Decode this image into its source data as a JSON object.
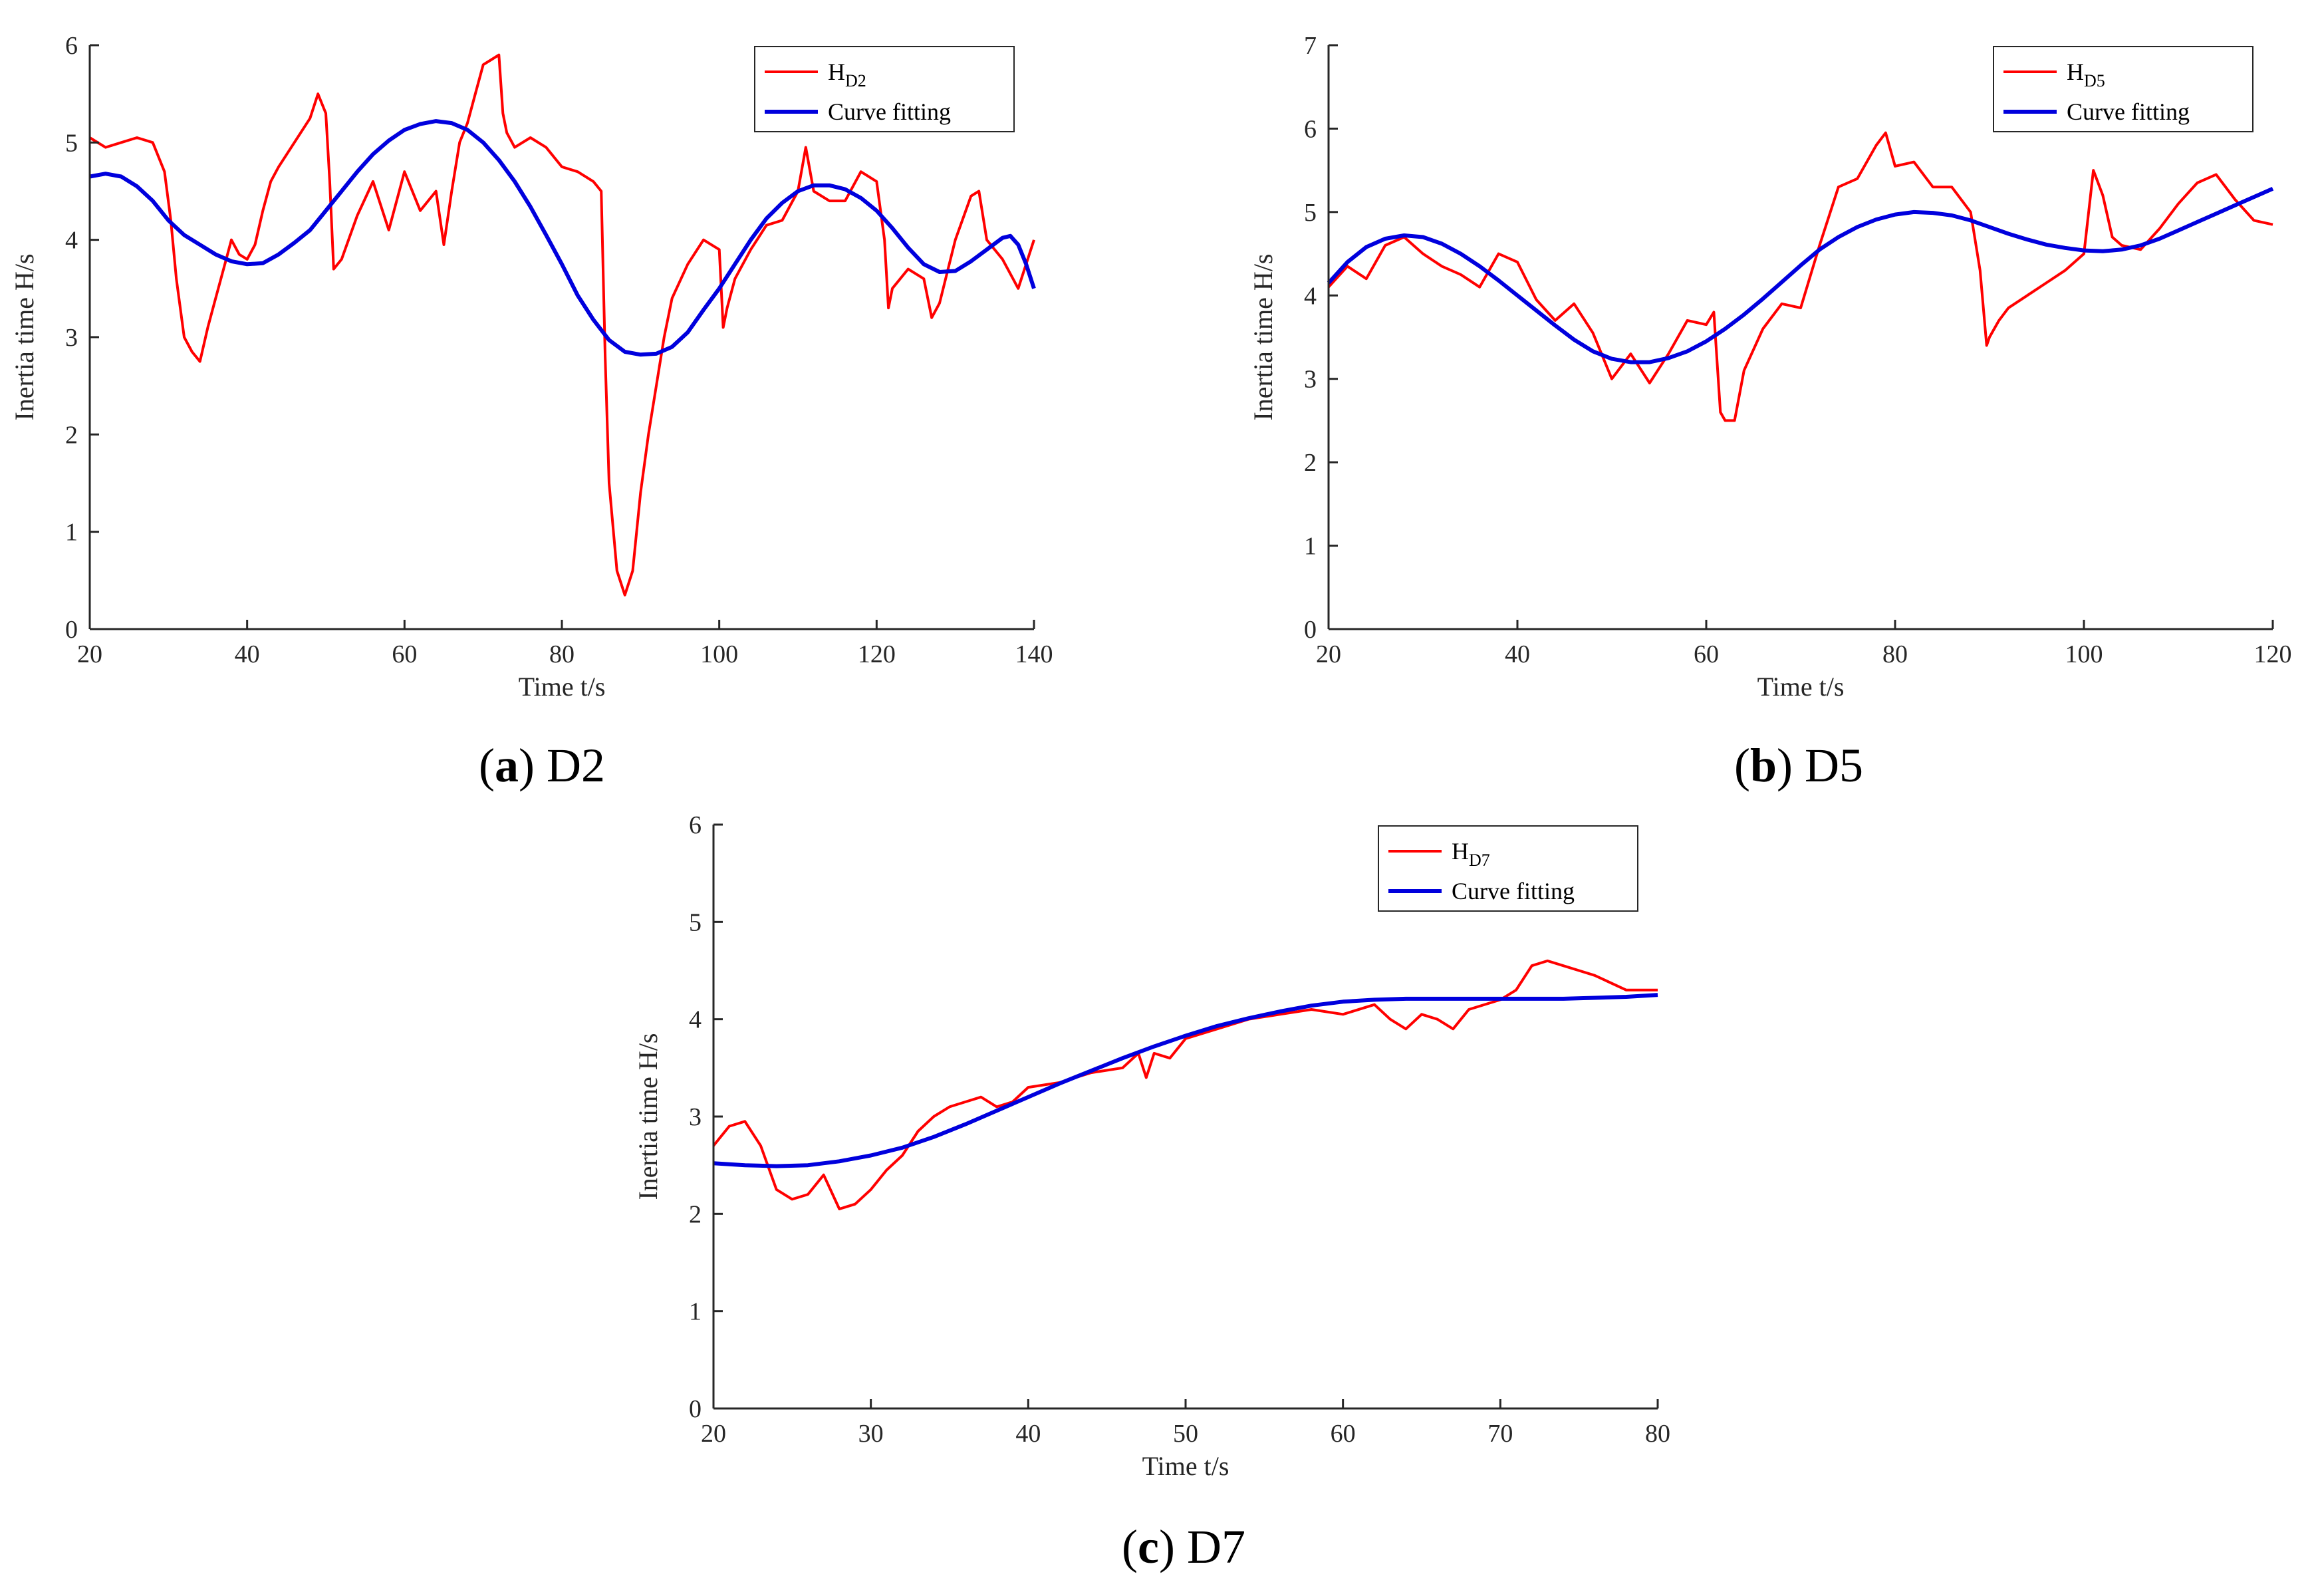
{
  "colors": {
    "measured": "#ff0000",
    "fit": "#0000dd",
    "axis": "#262626"
  },
  "chart_data": [
    {
      "id": "a",
      "type": "line",
      "xlabel": "Time t/s",
      "ylabel": "Inertia time H/s",
      "xlim": [
        20,
        140
      ],
      "ylim": [
        0,
        6
      ],
      "xticks": [
        "20",
        "40",
        "60",
        "80",
        "100",
        "120",
        "140"
      ],
      "yticks": [
        "0",
        "1",
        "2",
        "3",
        "4",
        "5",
        "6"
      ],
      "legend_position": "top-right",
      "caption": {
        "open": "(",
        "letter": "a",
        "close": ")",
        "text": " D2"
      },
      "series": [
        {
          "legend": {
            "main": "H",
            "sub": "D2"
          },
          "x": [
            20,
            22,
            24,
            26,
            28,
            29.5,
            30.3,
            31,
            32,
            33,
            34,
            35,
            36,
            37,
            38,
            39,
            40,
            41,
            42,
            43,
            44,
            46,
            48,
            49,
            50,
            50.5,
            51,
            52,
            54,
            56,
            58,
            60,
            62,
            64,
            65,
            66,
            67,
            68,
            69,
            70,
            71,
            72,
            72.5,
            73,
            74,
            76,
            78,
            80,
            82,
            84,
            85,
            85.5,
            86,
            87,
            88,
            89,
            90,
            91,
            92,
            93,
            94,
            96,
            98,
            100,
            100.5,
            101,
            102,
            104,
            106,
            108,
            110,
            111,
            112,
            114,
            116,
            118,
            120,
            121,
            121.5,
            122,
            124,
            126,
            127,
            128,
            130,
            132,
            133,
            134,
            136,
            138,
            140
          ],
          "y": [
            5.05,
            4.95,
            5.0,
            5.05,
            5.0,
            4.7,
            4.2,
            3.6,
            3.0,
            2.85,
            2.75,
            3.1,
            3.4,
            3.7,
            4.0,
            3.85,
            3.8,
            3.95,
            4.3,
            4.6,
            4.75,
            5.0,
            5.25,
            5.5,
            5.3,
            4.6,
            3.7,
            3.8,
            4.25,
            4.6,
            4.1,
            4.7,
            4.3,
            4.5,
            3.95,
            4.5,
            5.0,
            5.2,
            5.5,
            5.8,
            5.85,
            5.9,
            5.3,
            5.1,
            4.95,
            5.05,
            4.95,
            4.75,
            4.7,
            4.6,
            4.5,
            2.8,
            1.5,
            0.6,
            0.35,
            0.6,
            1.4,
            2.0,
            2.5,
            3.0,
            3.4,
            3.75,
            4.0,
            3.9,
            3.1,
            3.3,
            3.6,
            3.9,
            4.15,
            4.2,
            4.5,
            4.95,
            4.5,
            4.4,
            4.4,
            4.7,
            4.6,
            4.0,
            3.3,
            3.5,
            3.7,
            3.6,
            3.2,
            3.35,
            4.0,
            4.45,
            4.5,
            4.0,
            3.8,
            3.5,
            4.0
          ]
        },
        {
          "legend": {
            "main": "Curve fitting",
            "sub": ""
          },
          "x": [
            20,
            22,
            24,
            26,
            28,
            30,
            32,
            34,
            36,
            38,
            40,
            42,
            44,
            46,
            48,
            50,
            52,
            54,
            56,
            58,
            60,
            62,
            64,
            66,
            68,
            70,
            72,
            74,
            76,
            78,
            80,
            82,
            84,
            86,
            88,
            90,
            92,
            94,
            96,
            98,
            100,
            102,
            104,
            106,
            108,
            110,
            112,
            114,
            116,
            118,
            120,
            122,
            124,
            126,
            128,
            130,
            132,
            134,
            136,
            137,
            138,
            139,
            140
          ],
          "y": [
            4.65,
            4.68,
            4.65,
            4.55,
            4.4,
            4.2,
            4.05,
            3.95,
            3.85,
            3.78,
            3.75,
            3.76,
            3.85,
            3.97,
            4.1,
            4.3,
            4.5,
            4.7,
            4.88,
            5.02,
            5.13,
            5.19,
            5.22,
            5.2,
            5.13,
            5.0,
            4.82,
            4.6,
            4.34,
            4.05,
            3.75,
            3.43,
            3.18,
            2.97,
            2.85,
            2.82,
            2.83,
            2.9,
            3.05,
            3.28,
            3.5,
            3.75,
            4.0,
            4.22,
            4.38,
            4.5,
            4.56,
            4.56,
            4.52,
            4.43,
            4.3,
            4.12,
            3.92,
            3.75,
            3.67,
            3.68,
            3.78,
            3.9,
            4.02,
            4.04,
            3.95,
            3.75,
            3.5
          ]
        }
      ]
    },
    {
      "id": "b",
      "type": "line",
      "xlabel": "Time t/s",
      "ylabel": "Inertia time H/s",
      "xlim": [
        20,
        120
      ],
      "ylim": [
        0,
        7
      ],
      "xticks": [
        "20",
        "40",
        "60",
        "80",
        "100",
        "120"
      ],
      "yticks": [
        "0",
        "1",
        "2",
        "3",
        "4",
        "5",
        "6",
        "7"
      ],
      "legend_position": "top-right",
      "caption": {
        "open": "(",
        "letter": "b",
        "close": ")",
        "text": " D5"
      },
      "series": [
        {
          "legend": {
            "main": "H",
            "sub": "D5"
          },
          "x": [
            20,
            22,
            24,
            26,
            28,
            30,
            32,
            34,
            36,
            38,
            40,
            42,
            44,
            46,
            48,
            50,
            52,
            54,
            56,
            58,
            60,
            60.8,
            61.5,
            62,
            63,
            64,
            66,
            68,
            70,
            72,
            74,
            76,
            78,
            79,
            80,
            82,
            84,
            86,
            88,
            89,
            89.7,
            90,
            91,
            92,
            94,
            96,
            98,
            100,
            101,
            102,
            103,
            104,
            106,
            108,
            110,
            112,
            114,
            116,
            118,
            120
          ],
          "y": [
            4.1,
            4.35,
            4.2,
            4.6,
            4.7,
            4.5,
            4.35,
            4.25,
            4.1,
            4.5,
            4.4,
            3.95,
            3.7,
            3.9,
            3.55,
            3.0,
            3.3,
            2.95,
            3.3,
            3.7,
            3.65,
            3.8,
            2.6,
            2.5,
            2.5,
            3.1,
            3.6,
            3.9,
            3.85,
            4.6,
            5.3,
            5.4,
            5.8,
            5.95,
            5.55,
            5.6,
            5.3,
            5.3,
            5.0,
            4.3,
            3.4,
            3.5,
            3.7,
            3.85,
            4.0,
            4.15,
            4.3,
            4.5,
            5.5,
            5.2,
            4.7,
            4.6,
            4.55,
            4.8,
            5.1,
            5.35,
            5.45,
            5.15,
            4.9,
            4.85
          ]
        },
        {
          "legend": {
            "main": "Curve fitting",
            "sub": ""
          },
          "x": [
            20,
            22,
            24,
            26,
            28,
            30,
            32,
            34,
            36,
            38,
            40,
            42,
            44,
            46,
            48,
            50,
            52,
            54,
            56,
            58,
            60,
            62,
            64,
            66,
            68,
            70,
            72,
            74,
            76,
            78,
            80,
            82,
            84,
            86,
            88,
            90,
            92,
            94,
            96,
            98,
            100,
            102,
            104,
            106,
            108,
            110,
            112,
            114,
            116,
            118,
            120
          ],
          "y": [
            4.15,
            4.4,
            4.58,
            4.68,
            4.72,
            4.7,
            4.62,
            4.5,
            4.35,
            4.18,
            4.0,
            3.82,
            3.64,
            3.47,
            3.33,
            3.24,
            3.2,
            3.2,
            3.25,
            3.33,
            3.45,
            3.6,
            3.77,
            3.96,
            4.16,
            4.36,
            4.55,
            4.7,
            4.82,
            4.91,
            4.97,
            5.0,
            4.99,
            4.96,
            4.9,
            4.82,
            4.74,
            4.67,
            4.61,
            4.57,
            4.54,
            4.53,
            4.55,
            4.6,
            4.68,
            4.78,
            4.88,
            4.98,
            5.08,
            5.18,
            5.28
          ]
        }
      ]
    },
    {
      "id": "c",
      "type": "line",
      "xlabel": "Time t/s",
      "ylabel": "Inertia time H/s",
      "xlim": [
        20,
        80
      ],
      "ylim": [
        0,
        6
      ],
      "xticks": [
        "20",
        "30",
        "40",
        "50",
        "60",
        "70",
        "80"
      ],
      "yticks": [
        "0",
        "1",
        "2",
        "3",
        "4",
        "5",
        "6"
      ],
      "legend_position": "top-right",
      "caption": {
        "open": "(",
        "letter": "c",
        "close": ")",
        "text": " D7"
      },
      "series": [
        {
          "legend": {
            "main": "H",
            "sub": "D7"
          },
          "x": [
            20,
            21,
            22,
            23,
            24,
            25,
            26,
            27,
            28,
            29,
            30,
            31,
            32,
            33,
            34,
            35,
            36,
            37,
            38,
            39,
            40,
            42,
            44,
            46,
            47,
            47.5,
            48,
            49,
            50,
            52,
            54,
            56,
            58,
            60,
            62,
            63,
            64,
            65,
            66,
            67,
            68,
            70,
            71,
            72,
            73,
            74,
            75,
            76,
            78,
            80
          ],
          "y": [
            2.7,
            2.9,
            2.95,
            2.7,
            2.25,
            2.15,
            2.2,
            2.4,
            2.05,
            2.1,
            2.25,
            2.45,
            2.6,
            2.85,
            3.0,
            3.1,
            3.15,
            3.2,
            3.1,
            3.15,
            3.3,
            3.35,
            3.45,
            3.5,
            3.65,
            3.4,
            3.65,
            3.6,
            3.8,
            3.9,
            4.0,
            4.05,
            4.1,
            4.05,
            4.15,
            4.0,
            3.9,
            4.05,
            4.0,
            3.9,
            4.1,
            4.2,
            4.3,
            4.55,
            4.6,
            4.55,
            4.5,
            4.45,
            4.3,
            4.3
          ]
        },
        {
          "legend": {
            "main": "Curve fitting",
            "sub": ""
          },
          "x": [
            20,
            22,
            24,
            26,
            28,
            30,
            32,
            34,
            36,
            38,
            40,
            42,
            44,
            46,
            48,
            50,
            52,
            54,
            56,
            58,
            60,
            62,
            64,
            66,
            68,
            70,
            72,
            74,
            76,
            78,
            80
          ],
          "y": [
            2.52,
            2.5,
            2.49,
            2.5,
            2.54,
            2.6,
            2.68,
            2.79,
            2.92,
            3.06,
            3.2,
            3.34,
            3.47,
            3.6,
            3.72,
            3.83,
            3.93,
            4.01,
            4.08,
            4.14,
            4.18,
            4.2,
            4.21,
            4.21,
            4.21,
            4.21,
            4.21,
            4.21,
            4.22,
            4.23,
            4.25
          ]
        }
      ]
    }
  ]
}
